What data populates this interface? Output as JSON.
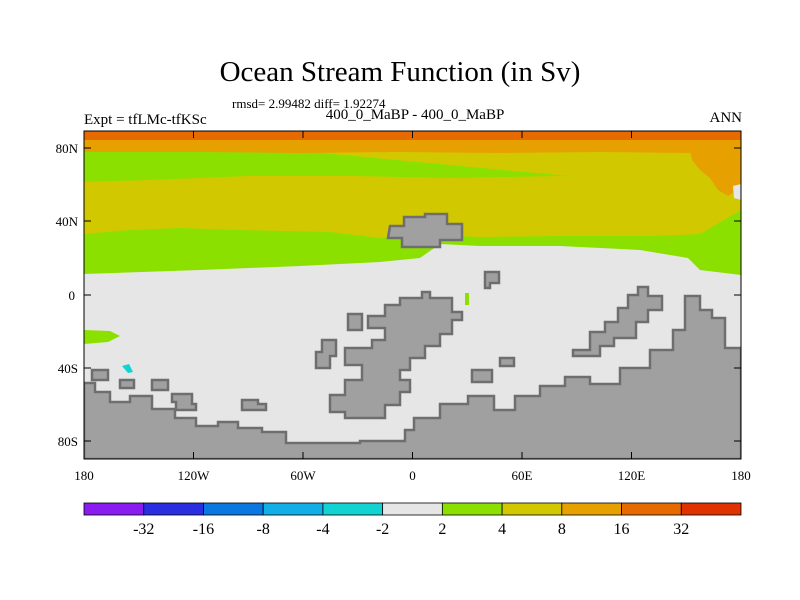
{
  "title": "Ocean Stream Function (in Sv)",
  "subtitle": "rmsd= 2.99482 diff= 1.92274",
  "center_label": "400_0_MaBP - 400_0_MaBP",
  "left_label": "Expt = tfLMc-tfKSc",
  "right_label": "ANN",
  "y_axis": {
    "ticks": [
      "80N",
      "40N",
      "0",
      "40S",
      "80S"
    ]
  },
  "x_axis": {
    "ticks": [
      "180",
      "120W",
      "60W",
      "0",
      "60E",
      "120E",
      "180"
    ]
  },
  "colorbar": {
    "labels": [
      "-32",
      "-16",
      "-8",
      "-4",
      "-2",
      "2",
      "4",
      "8",
      "16",
      "32"
    ],
    "colors": [
      "#8a1cf0",
      "#2a2ee0",
      "#0a78e0",
      "#12aee6",
      "#12d2d2",
      "#e6e6e6",
      "#8ce000",
      "#d2c800",
      "#e6a000",
      "#e66a00",
      "#e03200"
    ]
  },
  "map_colors": {
    "land": "#a0a0a0",
    "coast": "#6e6e6e",
    "ocean_near_zero": "#e6e6e6",
    "band_2_4": "#8ce000",
    "band_4_8": "#d2c800",
    "band_8_16": "#e6a000",
    "band_16_32": "#e66a00",
    "band_neg": "#12d2d2"
  }
}
